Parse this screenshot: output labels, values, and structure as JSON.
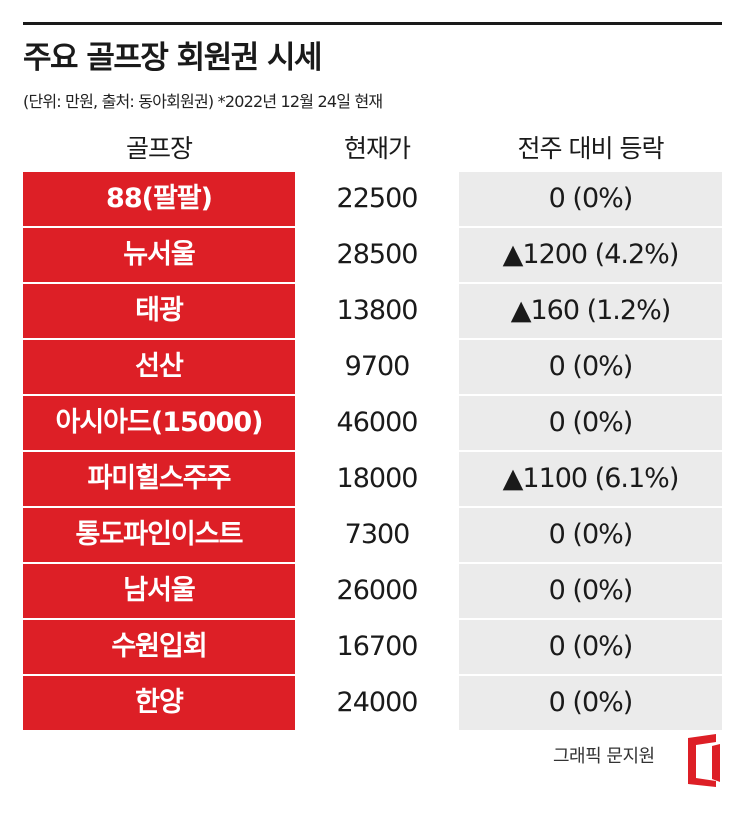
{
  "header": {
    "title": "주요 골프장 회원권 시세",
    "subtitle": "(단위: 만원, 출처: 동아회원권) *2022년 12월 24일 현재"
  },
  "columns": {
    "name": "골프장",
    "price": "현재가",
    "change": "전주 대비 등락"
  },
  "colors": {
    "accent": "#dd1f26",
    "change_bg": "#ebebeb",
    "text": "#1a1a1a"
  },
  "chart_data": {
    "type": "table",
    "title": "주요 골프장 회원권 시세",
    "subtitle": "(단위: 만원, 출처: 동아회원권) *2022년 12월 24일 현재",
    "columns": [
      "골프장",
      "현재가",
      "전주 대비 등락"
    ],
    "rows": [
      {
        "name": "88(팔팔)",
        "price": 22500,
        "price_text": "22500",
        "change_text": "0 (0%)"
      },
      {
        "name": "뉴서울",
        "price": 28500,
        "price_text": "28500",
        "change_text": "▲1200 (4.2%)"
      },
      {
        "name": "태광",
        "price": 13800,
        "price_text": "13800",
        "change_text": "▲160 (1.2%)"
      },
      {
        "name": "선산",
        "price": 9700,
        "price_text": "9700",
        "change_text": "0 (0%)"
      },
      {
        "name": "아시아드(15000)",
        "price": 46000,
        "price_text": "46000",
        "change_text": "0 (0%)"
      },
      {
        "name": "파미힐스주주",
        "price": 18000,
        "price_text": "18000",
        "change_text": "▲1100 (6.1%)"
      },
      {
        "name": "통도파인이스트",
        "price": 7300,
        "price_text": "7300",
        "change_text": "0 (0%)"
      },
      {
        "name": "남서울",
        "price": 26000,
        "price_text": "26000",
        "change_text": "0 (0%)"
      },
      {
        "name": "수원입회",
        "price": 16700,
        "price_text": "16700",
        "change_text": "0 (0%)"
      },
      {
        "name": "한양",
        "price": 24000,
        "price_text": "24000",
        "change_text": "0 (0%)"
      }
    ]
  },
  "footer": {
    "credit": "그래픽 문지원",
    "logo_icon": "red-bracket-logo-icon"
  }
}
